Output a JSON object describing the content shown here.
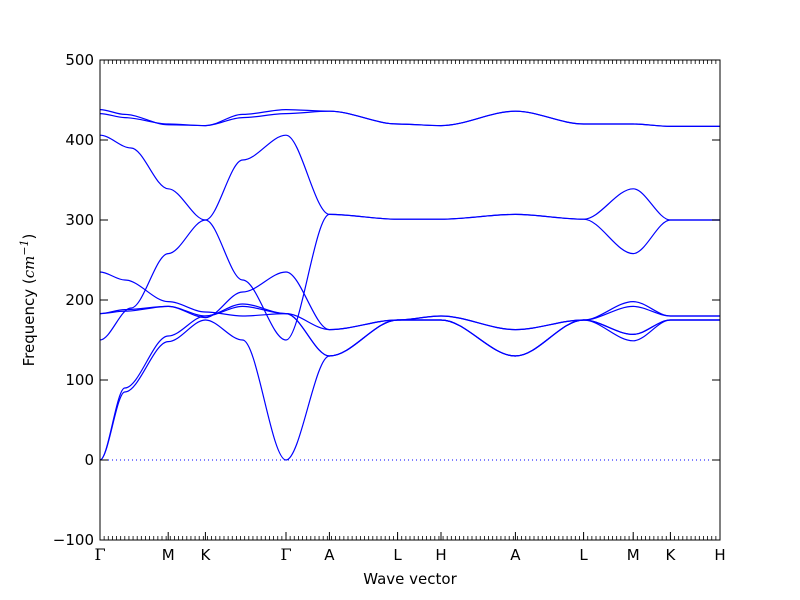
{
  "chart_data": {
    "type": "line",
    "xlabel": "Wave vector",
    "ylabel": {
      "text": "Frequency (",
      "unit_base": "cm",
      "unit_exp": "−1",
      "close": ")"
    },
    "ylim": [
      -100,
      500
    ],
    "yticks": [
      -100,
      0,
      100,
      200,
      300,
      400,
      500
    ],
    "grid": false,
    "legend": "none",
    "line_color": "#0000ff",
    "zero_line": {
      "y": 0,
      "style": "dotted",
      "color": "#0000ff"
    },
    "x": [
      0,
      0.11,
      0.17,
      0.3,
      0.37,
      0.48,
      0.55,
      0.67,
      0.78,
      0.86,
      0.92,
      1.0
    ],
    "segment_points": [
      [
        0.0,
        0.11
      ],
      [
        0.11,
        0.17
      ],
      [
        0.17,
        0.3
      ],
      [
        0.3,
        0.37
      ],
      [
        0.37,
        0.48
      ],
      [
        0.48,
        0.55
      ],
      [
        0.55,
        0.67
      ],
      [
        0.67,
        0.78
      ],
      [
        0.78,
        0.86
      ],
      [
        0.86,
        0.92
      ],
      [
        0.92,
        1.0
      ]
    ],
    "xticks": [
      {
        "label": "Γ",
        "x": 0.0,
        "greek": true
      },
      {
        "label": "M",
        "x": 0.11
      },
      {
        "label": "K",
        "x": 0.17
      },
      {
        "label": "Γ",
        "x": 0.3,
        "greek": true
      },
      {
        "label": "A",
        "x": 0.37
      },
      {
        "label": "L",
        "x": 0.48
      },
      {
        "label": "H",
        "x": 0.55
      },
      {
        "label": "A",
        "x": 0.67
      },
      {
        "label": "L",
        "x": 0.78
      },
      {
        "label": "M",
        "x": 0.86
      },
      {
        "label": "K",
        "x": 0.92
      },
      {
        "label": "H",
        "x": 1.0
      }
    ],
    "series": [
      {
        "values": [
          [
            0,
            433
          ],
          [
            0.04,
            428
          ],
          [
            0.11,
            420
          ],
          [
            0.17,
            418
          ],
          [
            0.23,
            428
          ],
          [
            0.3,
            433
          ],
          [
            0.37,
            436
          ],
          [
            0.48,
            420
          ],
          [
            0.55,
            418
          ],
          [
            0.67,
            436
          ],
          [
            0.78,
            420
          ],
          [
            0.86,
            420
          ],
          [
            0.92,
            417
          ],
          [
            1.0,
            417
          ]
        ]
      },
      {
        "values": [
          [
            0,
            438
          ],
          [
            0.04,
            432
          ],
          [
            0.11,
            419
          ],
          [
            0.17,
            418
          ],
          [
            0.23,
            432
          ],
          [
            0.3,
            438
          ],
          [
            0.37,
            436
          ],
          [
            0.48,
            420
          ],
          [
            0.55,
            418
          ],
          [
            0.67,
            436
          ],
          [
            0.78,
            420
          ],
          [
            0.86,
            420
          ],
          [
            0.92,
            417
          ],
          [
            1.0,
            417
          ]
        ]
      },
      {
        "values": [
          [
            0,
            406
          ],
          [
            0.05,
            390
          ],
          [
            0.11,
            339
          ],
          [
            0.17,
            300
          ],
          [
            0.23,
            225
          ],
          [
            0.3,
            150
          ],
          [
            0.37,
            307
          ],
          [
            0.48,
            301
          ],
          [
            0.55,
            301
          ],
          [
            0.67,
            307
          ],
          [
            0.78,
            301
          ],
          [
            0.86,
            258
          ],
          [
            0.92,
            300
          ],
          [
            1.0,
            300
          ]
        ]
      },
      {
        "values": [
          [
            0,
            150
          ],
          [
            0.05,
            190
          ],
          [
            0.11,
            258
          ],
          [
            0.17,
            300
          ],
          [
            0.23,
            375
          ],
          [
            0.3,
            406
          ],
          [
            0.37,
            307
          ],
          [
            0.48,
            301
          ],
          [
            0.55,
            301
          ],
          [
            0.67,
            307
          ],
          [
            0.78,
            301
          ],
          [
            0.86,
            339
          ],
          [
            0.92,
            300
          ],
          [
            1.0,
            300
          ]
        ]
      },
      {
        "values": [
          [
            0,
            235
          ],
          [
            0.04,
            225
          ],
          [
            0.11,
            198
          ],
          [
            0.17,
            185
          ],
          [
            0.23,
            180
          ],
          [
            0.3,
            183
          ],
          [
            0.37,
            163
          ],
          [
            0.48,
            175
          ],
          [
            0.55,
            180
          ],
          [
            0.67,
            163
          ],
          [
            0.78,
            175
          ],
          [
            0.86,
            192
          ],
          [
            0.92,
            180
          ],
          [
            1.0,
            180
          ]
        ]
      },
      {
        "values": [
          [
            0,
            183
          ],
          [
            0.04,
            186
          ],
          [
            0.11,
            192
          ],
          [
            0.17,
            178
          ],
          [
            0.23,
            210
          ],
          [
            0.3,
            235
          ],
          [
            0.37,
            163
          ],
          [
            0.48,
            175
          ],
          [
            0.55,
            180
          ],
          [
            0.67,
            163
          ],
          [
            0.78,
            175
          ],
          [
            0.86,
            198
          ],
          [
            0.92,
            180
          ],
          [
            1.0,
            180
          ]
        ]
      },
      {
        "values": [
          [
            0,
            183
          ],
          [
            0.04,
            188
          ],
          [
            0.11,
            192
          ],
          [
            0.17,
            180
          ],
          [
            0.23,
            195
          ],
          [
            0.3,
            183
          ],
          [
            0.37,
            130
          ],
          [
            0.48,
            175
          ],
          [
            0.55,
            175
          ],
          [
            0.67,
            130
          ],
          [
            0.78,
            175
          ],
          [
            0.86,
            157
          ],
          [
            0.92,
            175
          ],
          [
            1.0,
            175
          ]
        ]
      },
      {
        "values": [
          [
            0,
            0
          ],
          [
            0.04,
            90
          ],
          [
            0.11,
            155
          ],
          [
            0.17,
            180
          ],
          [
            0.23,
            192
          ],
          [
            0.3,
            183
          ],
          [
            0.37,
            130
          ],
          [
            0.48,
            175
          ],
          [
            0.55,
            175
          ],
          [
            0.67,
            130
          ],
          [
            0.78,
            175
          ],
          [
            0.86,
            157
          ],
          [
            0.92,
            175
          ],
          [
            1.0,
            175
          ]
        ]
      },
      {
        "values": [
          [
            0,
            0
          ],
          [
            0.04,
            85
          ],
          [
            0.11,
            148
          ],
          [
            0.17,
            175
          ],
          [
            0.23,
            150
          ],
          [
            0.3,
            0
          ],
          [
            0.37,
            130
          ],
          [
            0.48,
            175
          ],
          [
            0.55,
            175
          ],
          [
            0.67,
            130
          ],
          [
            0.78,
            175
          ],
          [
            0.86,
            149
          ],
          [
            0.92,
            175
          ],
          [
            1.0,
            175
          ]
        ]
      }
    ]
  }
}
